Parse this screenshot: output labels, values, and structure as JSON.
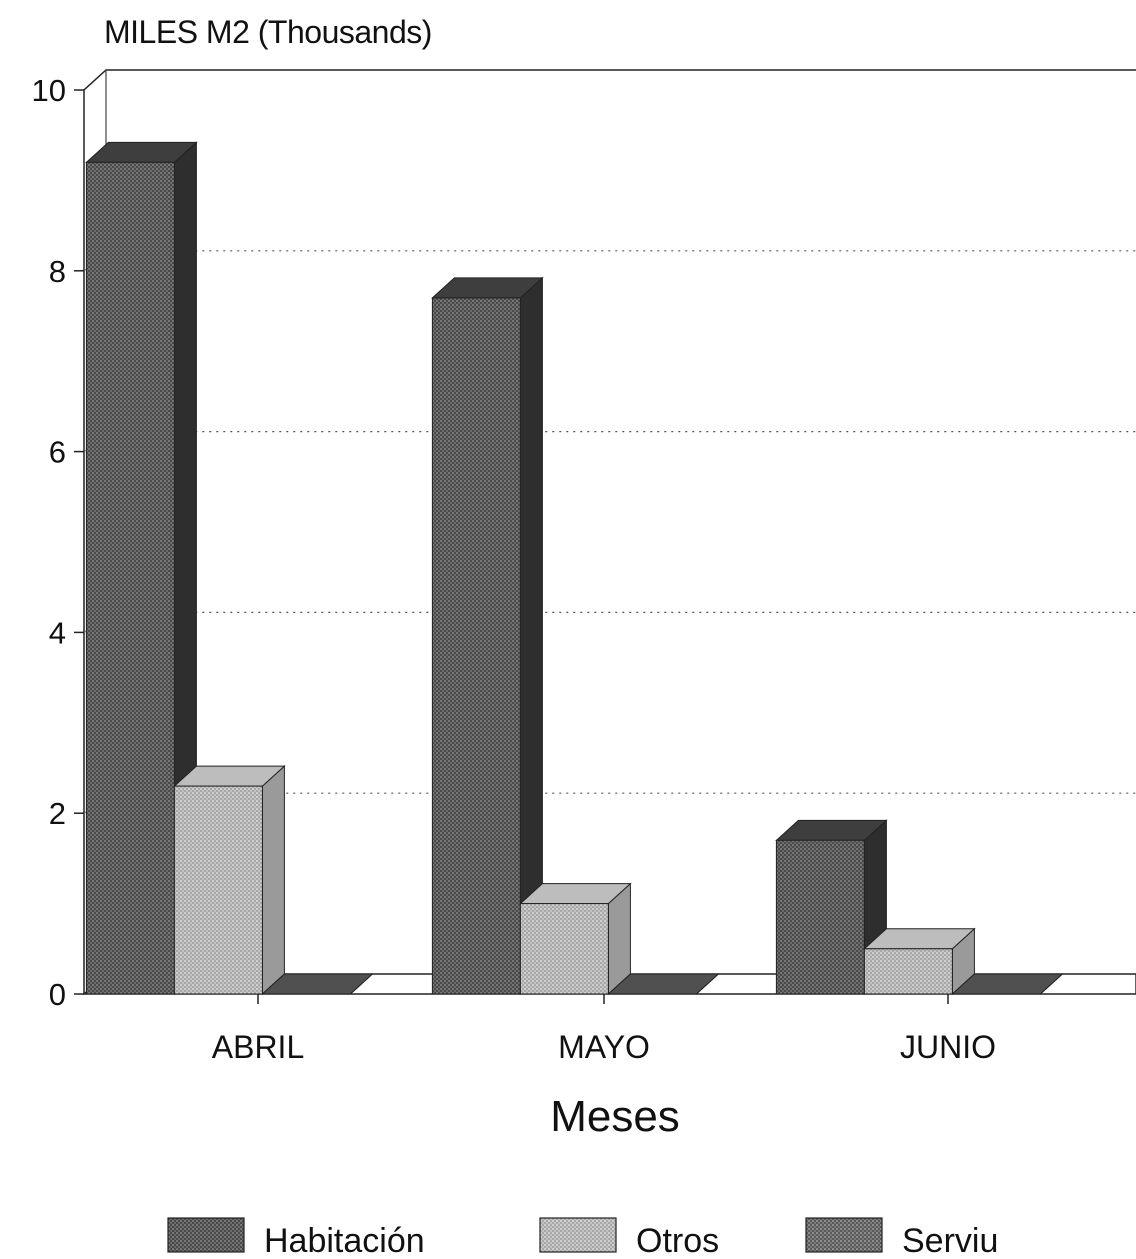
{
  "chart_data": {
    "type": "bar",
    "title": "",
    "ylabel": "MILES M2 (Thousands)",
    "xlabel": "Meses",
    "categories": [
      "ABRIL",
      "MAYO",
      "JUNIO"
    ],
    "yticks": [
      "0",
      "2",
      "4",
      "6",
      "8",
      "10"
    ],
    "ylim": [
      0,
      10
    ],
    "grid": true,
    "legend_position": "bottom",
    "series": [
      {
        "name": "Habitación",
        "values": [
          9.2,
          7.7,
          1.7
        ],
        "color": "#555555"
      },
      {
        "name": "Otros",
        "values": [
          2.3,
          1.0,
          0.5
        ],
        "color": "#b4b4b4"
      },
      {
        "name": "Serviu",
        "values": [
          0.0,
          0.0,
          0.0
        ],
        "color": "#5e5e5e"
      }
    ]
  }
}
